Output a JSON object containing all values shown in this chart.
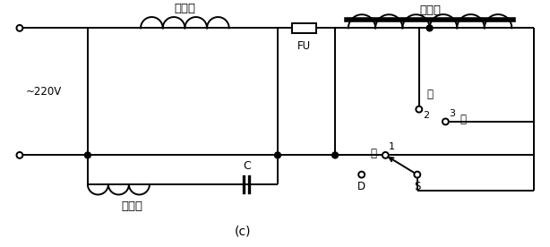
{
  "title": "(c)",
  "label_220v": "~220V",
  "label_fu": "FU",
  "label_main_coil": "主继组",
  "label_aux_coil": "副继组",
  "label_reactor": "电抗器",
  "label_C": "C",
  "label_high": "高",
  "label_mid": "中",
  "label_low": "低",
  "label_D": "D",
  "label_S": "S",
  "label_1": "1",
  "label_2": "2",
  "label_3": "3",
  "line_color": "#000000",
  "bg_color": "#ffffff",
  "lw": 1.4
}
